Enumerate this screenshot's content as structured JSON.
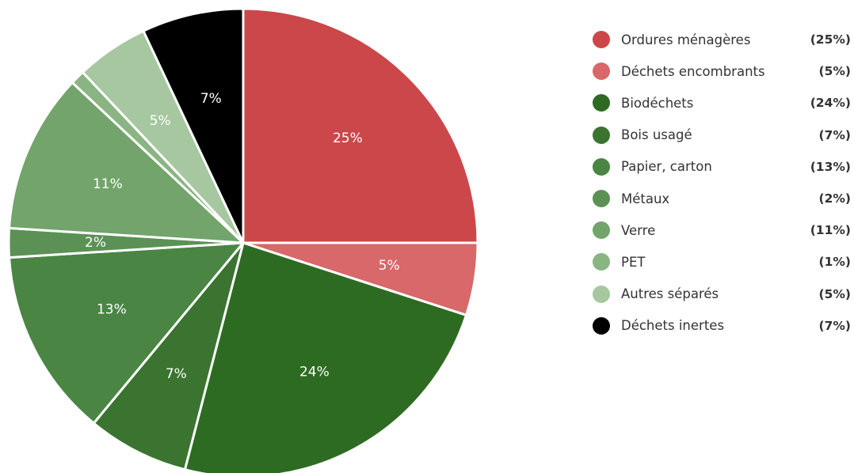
{
  "chart_data": {
    "type": "pie",
    "title": "",
    "legend_position": "right",
    "slices": [
      {
        "label": "Ordures ménagères",
        "value": 25,
        "display_value": "25%",
        "legend_value": "(25%)",
        "color": "#cc4749"
      },
      {
        "label": "Déchets encombrants",
        "value": 5,
        "display_value": "5%",
        "legend_value": "(5%)",
        "color": "#d8686a"
      },
      {
        "label": "Biodéchets",
        "value": 24,
        "display_value": "24%",
        "legend_value": "(24%)",
        "color": "#2e6b22"
      },
      {
        "label": "Bois usagé",
        "value": 7,
        "display_value": "7%",
        "legend_value": "(7%)",
        "color": "#3a7430"
      },
      {
        "label": "Papier, carton",
        "value": 13,
        "display_value": "13%",
        "legend_value": "(13%)",
        "color": "#4a8544"
      },
      {
        "label": "Métaux",
        "value": 2,
        "display_value": "2%",
        "legend_value": "(2%)",
        "color": "#5b9155"
      },
      {
        "label": "Verre",
        "value": 11,
        "display_value": "11%",
        "legend_value": "(11%)",
        "color": "#72a46b"
      },
      {
        "label": "PET",
        "value": 1,
        "display_value": "",
        "legend_value": "(1%)",
        "color": "#8ab583"
      },
      {
        "label": "Autres séparés",
        "value": 5,
        "display_value": "5%",
        "legend_value": "(5%)",
        "color": "#a6c7a0"
      },
      {
        "label": "Déchets inertes",
        "value": 7,
        "display_value": "7%",
        "legend_value": "(7%)",
        "color": "#000000"
      }
    ]
  }
}
